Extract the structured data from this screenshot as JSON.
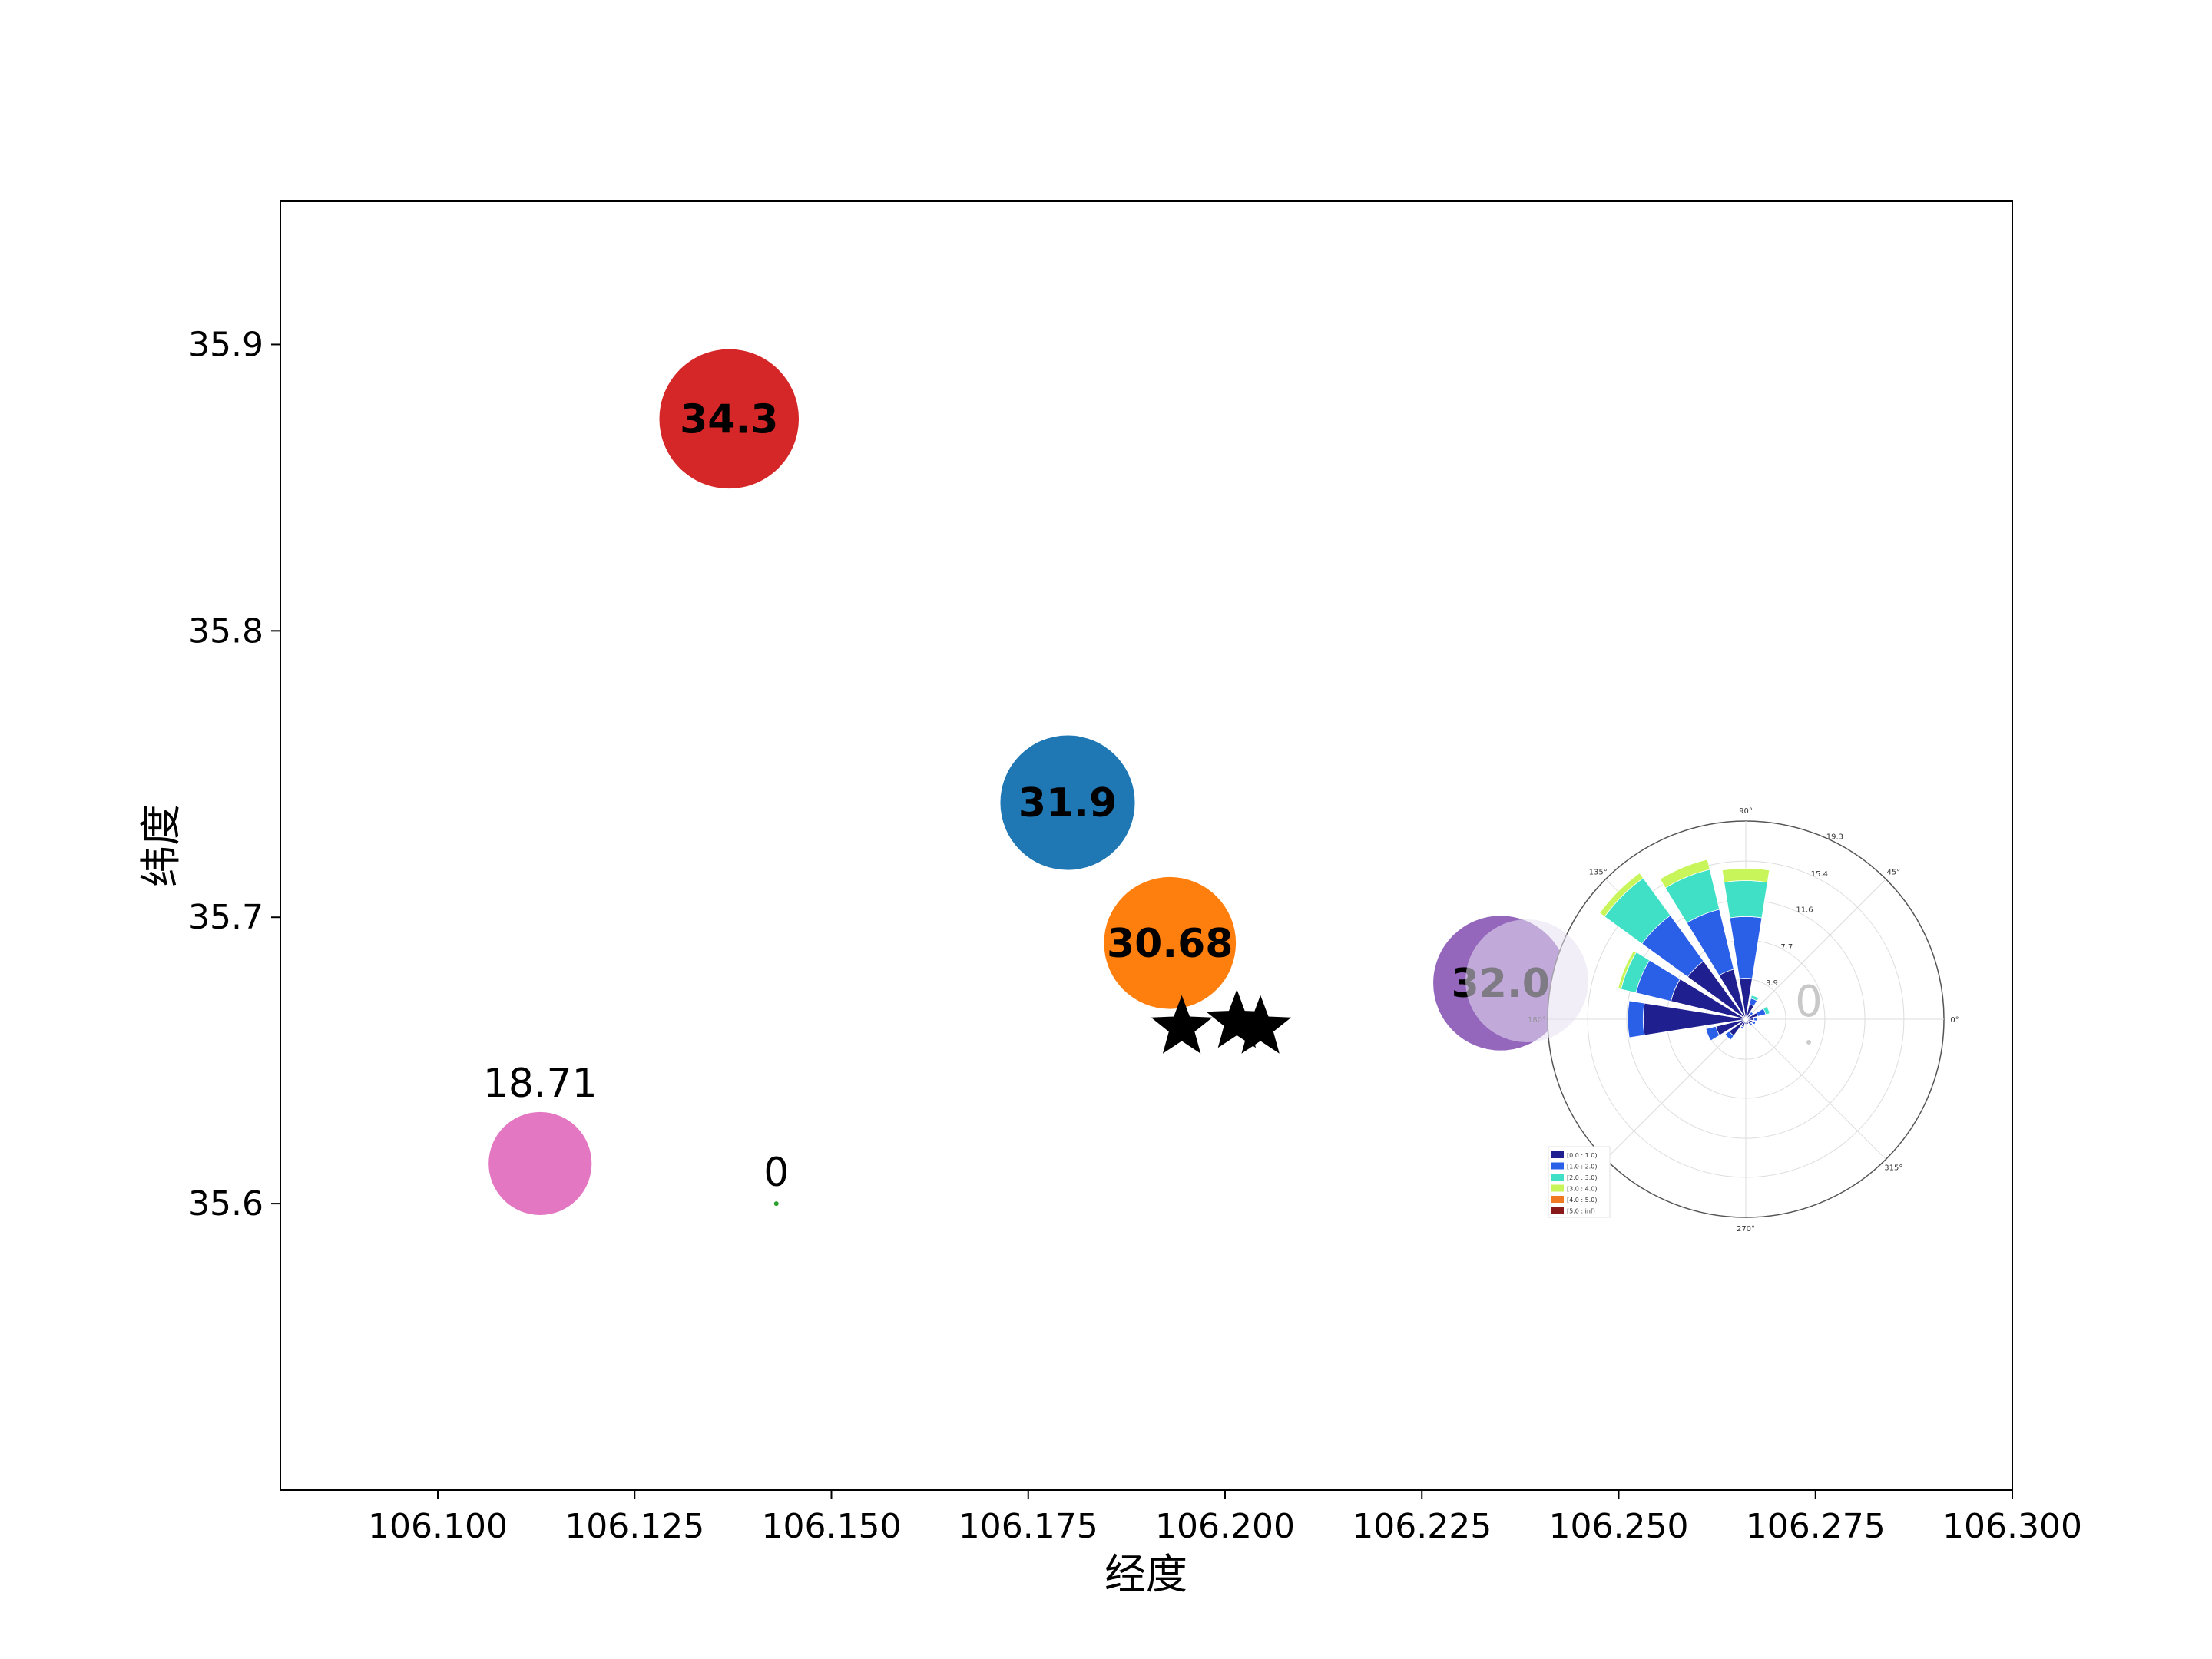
{
  "chart_data": [
    {
      "type": "scatter",
      "title": "",
      "xlabel": "经度",
      "ylabel": "纬度",
      "xlim": [
        106.08,
        106.3
      ],
      "ylim": [
        35.5,
        35.95
      ],
      "xticks": [
        "106.100",
        "106.125",
        "106.150",
        "106.175",
        "106.200",
        "106.225",
        "106.250",
        "106.275",
        "106.300"
      ],
      "xtick_values": [
        106.1,
        106.125,
        106.15,
        106.175,
        106.2,
        106.225,
        106.25,
        106.275,
        106.3
      ],
      "yticks": [
        "35.6",
        "35.7",
        "35.8",
        "35.9"
      ],
      "ytick_values": [
        35.6,
        35.7,
        35.8,
        35.9
      ],
      "grid": false,
      "bubbles": [
        {
          "x": 106.137,
          "y": 35.874,
          "value": 34.3,
          "label": "34.3",
          "color": "#d62728",
          "label_style": "bold-center"
        },
        {
          "x": 106.18,
          "y": 35.74,
          "value": 31.9,
          "label": "31.9",
          "color": "#1f77b4",
          "label_style": "bold-center"
        },
        {
          "x": 106.193,
          "y": 35.691,
          "value": 30.68,
          "label": "30.68",
          "color": "#ff7f0e",
          "label_style": "bold-center"
        },
        {
          "x": 106.235,
          "y": 35.677,
          "value": 32.0,
          "label": "32.0",
          "color": "#9467bd",
          "label_style": "bold-center"
        },
        {
          "x": 106.113,
          "y": 35.614,
          "value": 18.71,
          "label": "18.71",
          "color": "#e377c2",
          "label_style": "plain-above"
        },
        {
          "x": 106.143,
          "y": 35.6,
          "value": 0,
          "label": "0",
          "color": "#2ca02c",
          "label_style": "plain-above"
        }
      ],
      "stars": [
        {
          "x": 106.1945,
          "y": 35.6615
        },
        {
          "x": 106.2015,
          "y": 35.6635
        },
        {
          "x": 106.2045,
          "y": 35.6615
        }
      ]
    },
    {
      "type": "windrose",
      "center_label": "0",
      "angle_labels": [
        "0°",
        "45°",
        "90°",
        "135°",
        "180°",
        "270°",
        "315°"
      ],
      "radial_labels": [
        "3.9",
        "7.7",
        "11.6",
        "15.4",
        "19.3"
      ],
      "rmax": 19.3,
      "legend": [
        {
          "label": "[0.0 : 1.0)",
          "color": "#1f1f8f"
        },
        {
          "label": "[1.0 : 2.0)",
          "color": "#2a5fe8"
        },
        {
          "label": "[2.0 : 3.0)",
          "color": "#3fe0c5"
        },
        {
          "label": "[3.0 : 4.0)",
          "color": "#c8f55a"
        },
        {
          "label": "[4.0 : 5.0)",
          "color": "#f07a24"
        },
        {
          "label": "[5.0 : inf)",
          "color": "#8a1a1a"
        }
      ],
      "sectors": [
        {
          "angle": 0,
          "stack": [
            0.8,
            0.3,
            0,
            0,
            0,
            0
          ]
        },
        {
          "angle": 22.5,
          "stack": [
            1.2,
            0.8,
            0.4,
            0,
            0,
            0
          ]
        },
        {
          "angle": 45,
          "stack": [
            0.6,
            0.3,
            0,
            0,
            0,
            0
          ]
        },
        {
          "angle": 67.5,
          "stack": [
            1.5,
            0.6,
            0.3,
            0,
            0,
            0
          ]
        },
        {
          "angle": 90,
          "stack": [
            4.0,
            6.0,
            3.5,
            1.2,
            0,
            0
          ]
        },
        {
          "angle": 112.5,
          "stack": [
            5.0,
            6.0,
            4.0,
            1.0,
            0,
            0
          ]
        },
        {
          "angle": 135,
          "stack": [
            7.0,
            5.5,
            4.5,
            0.6,
            0,
            0
          ]
        },
        {
          "angle": 157.5,
          "stack": [
            7.5,
            3.5,
            1.5,
            0.3,
            0,
            0
          ]
        },
        {
          "angle": 180,
          "stack": [
            10.0,
            1.5,
            0,
            0,
            0,
            0
          ]
        },
        {
          "angle": 202.5,
          "stack": [
            3.0,
            1.0,
            0,
            0,
            0,
            0
          ]
        },
        {
          "angle": 225,
          "stack": [
            2.0,
            0.5,
            0,
            0,
            0,
            0
          ]
        },
        {
          "angle": 247.5,
          "stack": [
            0.8,
            0.2,
            0,
            0,
            0,
            0
          ]
        },
        {
          "angle": 270,
          "stack": [
            0.5,
            0,
            0,
            0,
            0,
            0
          ]
        },
        {
          "angle": 292.5,
          "stack": [
            0.5,
            0,
            0,
            0,
            0,
            0
          ]
        },
        {
          "angle": 315,
          "stack": [
            0.6,
            0.2,
            0,
            0,
            0,
            0
          ]
        },
        {
          "angle": 337.5,
          "stack": [
            0.7,
            0.3,
            0,
            0,
            0,
            0
          ]
        }
      ]
    }
  ]
}
